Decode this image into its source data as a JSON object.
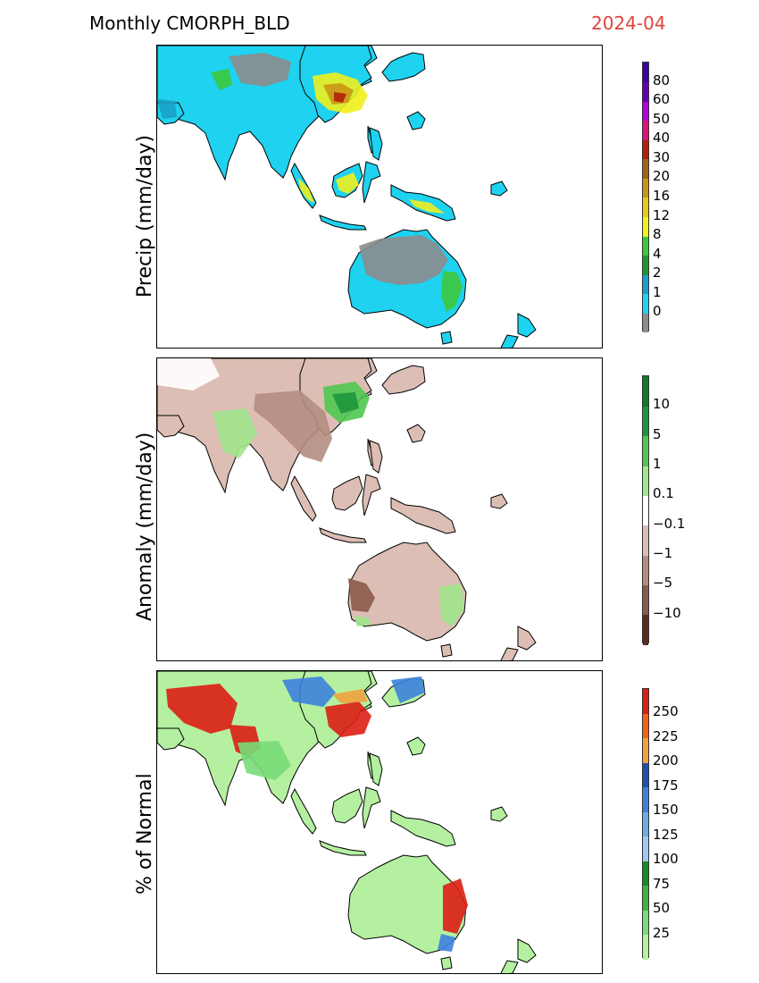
{
  "header": {
    "title": "Monthly CMORPH_BLD",
    "date": "2024-04"
  },
  "colors": {
    "date_text": "#e0443c",
    "ocean": "#ffffff",
    "border": "#000000"
  },
  "panels": [
    {
      "ylabel": "Precip (mm/day)",
      "colorbar": {
        "labels": [
          "0",
          "1",
          "2",
          "4",
          "8",
          "12",
          "16",
          "20",
          "30",
          "40",
          "50",
          "60",
          "80"
        ],
        "colors": [
          "#8c8c8c",
          "#1ed2f0",
          "#1aa0c8",
          "#1e9632",
          "#3cc83c",
          "#f0f01e",
          "#e6c81e",
          "#c89614",
          "#a06414",
          "#b41e0a",
          "#dc1478",
          "#b400dc",
          "#6400b4",
          "#3c00a0"
        ]
      }
    },
    {
      "ylabel": "Anomaly (mm/day)",
      "colorbar": {
        "labels": [
          "−10",
          "−5",
          "−1",
          "−0.1",
          "0.1",
          "1",
          "5",
          "10"
        ],
        "colors": [
          "#5a2d23",
          "#8c5a4b",
          "#b48c82",
          "#dcbeb4",
          "#ffffff",
          "#a0e68c",
          "#50c850",
          "#1e963c",
          "#14782d"
        ]
      }
    },
    {
      "ylabel": "% of Normal",
      "colorbar": {
        "labels": [
          "25",
          "50",
          "75",
          "100",
          "125",
          "150",
          "175",
          "200",
          "225",
          "250"
        ],
        "colors": [
          "#b4f0a0",
          "#78dc78",
          "#3cb43c",
          "#148c28",
          "#a0c8f0",
          "#6eaae6",
          "#3c82dc",
          "#1e50b4",
          "#f0a03c",
          "#f06414",
          "#dc1e14"
        ]
      }
    }
  ]
}
